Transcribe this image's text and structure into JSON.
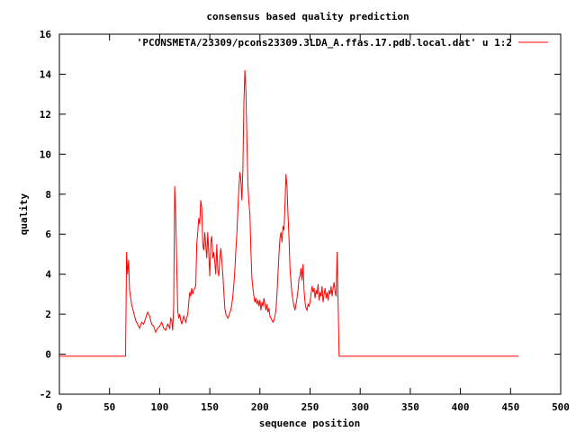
{
  "colors": {
    "series": "#ff0000",
    "axis": "#000000",
    "background": "#ffffff"
  },
  "chart_data": {
    "type": "line",
    "title": "consensus based quality prediction",
    "xlabel": "sequence position",
    "ylabel": "quality",
    "xlim": [
      0,
      500
    ],
    "ylim": [
      -2,
      16
    ],
    "xticks": [
      0,
      50,
      100,
      150,
      200,
      250,
      300,
      350,
      400,
      450,
      500
    ],
    "yticks": [
      -2,
      0,
      2,
      4,
      6,
      8,
      10,
      12,
      14,
      16
    ],
    "grid": false,
    "legend_position": "top-right",
    "series": [
      {
        "name": "'PCONSMETA/23309/pcons23309.3LDA_A.ffas.17.pdb.local.dat' u 1:2",
        "color": "#ff0000",
        "points": [
          [
            0,
            -0.1
          ],
          [
            66,
            -0.1
          ],
          [
            67,
            5.1
          ],
          [
            68,
            4.0
          ],
          [
            69,
            4.7
          ],
          [
            70,
            3.2
          ],
          [
            72,
            2.5
          ],
          [
            74,
            2.1
          ],
          [
            76,
            1.7
          ],
          [
            78,
            1.5
          ],
          [
            80,
            1.3
          ],
          [
            82,
            1.6
          ],
          [
            84,
            1.5
          ],
          [
            86,
            1.8
          ],
          [
            88,
            2.1
          ],
          [
            90,
            1.9
          ],
          [
            92,
            1.5
          ],
          [
            94,
            1.4
          ],
          [
            96,
            1.1
          ],
          [
            98,
            1.3
          ],
          [
            100,
            1.4
          ],
          [
            102,
            1.6
          ],
          [
            104,
            1.3
          ],
          [
            106,
            1.2
          ],
          [
            108,
            1.5
          ],
          [
            110,
            1.3
          ],
          [
            111,
            1.8
          ],
          [
            112,
            1.7
          ],
          [
            113,
            1.2
          ],
          [
            114,
            2.4
          ],
          [
            115,
            8.4
          ],
          [
            116,
            7.0
          ],
          [
            117,
            4.5
          ],
          [
            118,
            2.2
          ],
          [
            119,
            1.8
          ],
          [
            120,
            2.0
          ],
          [
            121,
            1.7
          ],
          [
            122,
            1.5
          ],
          [
            124,
            1.9
          ],
          [
            126,
            1.6
          ],
          [
            128,
            2.0
          ],
          [
            130,
            3.1
          ],
          [
            131,
            2.9
          ],
          [
            132,
            3.3
          ],
          [
            133,
            3.0
          ],
          [
            134,
            3.2
          ],
          [
            136,
            3.4
          ],
          [
            137,
            5.5
          ],
          [
            138,
            6.1
          ],
          [
            139,
            6.8
          ],
          [
            140,
            6.5
          ],
          [
            141,
            7.7
          ],
          [
            142,
            7.3
          ],
          [
            143,
            5.5
          ],
          [
            144,
            5.2
          ],
          [
            145,
            6.1
          ],
          [
            146,
            5.4
          ],
          [
            147,
            4.8
          ],
          [
            148,
            6.1
          ],
          [
            149,
            5.0
          ],
          [
            150,
            3.9
          ],
          [
            151,
            5.6
          ],
          [
            152,
            5.9
          ],
          [
            153,
            4.8
          ],
          [
            154,
            5.1
          ],
          [
            155,
            4.6
          ],
          [
            156,
            4.0
          ],
          [
            157,
            5.5
          ],
          [
            158,
            4.2
          ],
          [
            159,
            3.9
          ],
          [
            160,
            4.8
          ],
          [
            161,
            5.3
          ],
          [
            162,
            4.7
          ],
          [
            163,
            4.0
          ],
          [
            164,
            3.1
          ],
          [
            165,
            2.3
          ],
          [
            166,
            2.0
          ],
          [
            167,
            1.9
          ],
          [
            168,
            1.8
          ],
          [
            169,
            1.9
          ],
          [
            170,
            2.1
          ],
          [
            171,
            2.2
          ],
          [
            172,
            2.5
          ],
          [
            173,
            2.9
          ],
          [
            174,
            3.5
          ],
          [
            175,
            4.2
          ],
          [
            176,
            5.2
          ],
          [
            177,
            6.0
          ],
          [
            178,
            7.2
          ],
          [
            179,
            8.3
          ],
          [
            180,
            9.1
          ],
          [
            181,
            8.7
          ],
          [
            182,
            7.7
          ],
          [
            183,
            9.2
          ],
          [
            184,
            12.5
          ],
          [
            185,
            14.2
          ],
          [
            186,
            13.2
          ],
          [
            187,
            10.8
          ],
          [
            188,
            8.5
          ],
          [
            189,
            7.6
          ],
          [
            190,
            7.0
          ],
          [
            191,
            5.2
          ],
          [
            192,
            3.8
          ],
          [
            193,
            3.3
          ],
          [
            194,
            2.9
          ],
          [
            195,
            2.6
          ],
          [
            196,
            2.8
          ],
          [
            197,
            2.5
          ],
          [
            198,
            2.7
          ],
          [
            199,
            2.4
          ],
          [
            200,
            2.7
          ],
          [
            201,
            2.2
          ],
          [
            202,
            2.6
          ],
          [
            203,
            2.4
          ],
          [
            204,
            2.8
          ],
          [
            205,
            2.5
          ],
          [
            206,
            2.2
          ],
          [
            207,
            2.5
          ],
          [
            208,
            2.1
          ],
          [
            209,
            2.3
          ],
          [
            210,
            1.9
          ],
          [
            211,
            1.8
          ],
          [
            212,
            1.7
          ],
          [
            213,
            1.6
          ],
          [
            214,
            1.7
          ],
          [
            215,
            1.9
          ],
          [
            216,
            2.2
          ],
          [
            217,
            3.0
          ],
          [
            218,
            4.0
          ],
          [
            219,
            5.0
          ],
          [
            220,
            5.8
          ],
          [
            221,
            6.1
          ],
          [
            222,
            5.6
          ],
          [
            223,
            6.4
          ],
          [
            224,
            6.2
          ],
          [
            225,
            7.5
          ],
          [
            226,
            9.0
          ],
          [
            227,
            8.4
          ],
          [
            228,
            7.0
          ],
          [
            229,
            5.8
          ],
          [
            230,
            4.3
          ],
          [
            231,
            3.6
          ],
          [
            232,
            3.0
          ],
          [
            233,
            2.7
          ],
          [
            234,
            2.4
          ],
          [
            235,
            2.2
          ],
          [
            236,
            2.5
          ],
          [
            237,
            2.8
          ],
          [
            238,
            3.2
          ],
          [
            239,
            3.8
          ],
          [
            240,
            3.9
          ],
          [
            241,
            4.3
          ],
          [
            242,
            3.7
          ],
          [
            243,
            4.5
          ],
          [
            244,
            3.2
          ],
          [
            245,
            2.6
          ],
          [
            246,
            2.3
          ],
          [
            247,
            2.2
          ],
          [
            248,
            2.5
          ],
          [
            249,
            2.4
          ],
          [
            250,
            2.6
          ],
          [
            251,
            3.0
          ],
          [
            252,
            3.4
          ],
          [
            253,
            3.1
          ],
          [
            254,
            3.3
          ],
          [
            255,
            2.8
          ],
          [
            256,
            3.2
          ],
          [
            257,
            3.0
          ],
          [
            258,
            3.5
          ],
          [
            259,
            2.7
          ],
          [
            260,
            3.1
          ],
          [
            261,
            2.9
          ],
          [
            262,
            3.4
          ],
          [
            263,
            2.6
          ],
          [
            264,
            3.0
          ],
          [
            265,
            3.3
          ],
          [
            266,
            2.8
          ],
          [
            267,
            3.1
          ],
          [
            268,
            2.7
          ],
          [
            269,
            3.2
          ],
          [
            270,
            3.0
          ],
          [
            271,
            3.4
          ],
          [
            272,
            2.9
          ],
          [
            273,
            3.3
          ],
          [
            274,
            3.6
          ],
          [
            275,
            3.1
          ],
          [
            276,
            2.9
          ],
          [
            277,
            5.1
          ],
          [
            278,
            2.6
          ],
          [
            279,
            -0.1
          ],
          [
            458,
            -0.1
          ]
        ]
      }
    ]
  }
}
